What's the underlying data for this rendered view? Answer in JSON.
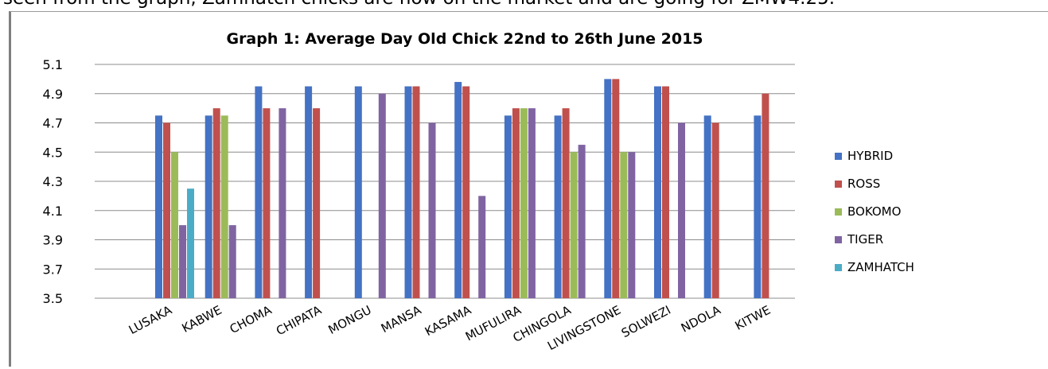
{
  "intro_text": "seen from the graph, Zamhatch chicks are now on the market and are going for ZMW4.25.",
  "chart_data": {
    "type": "bar",
    "title": "Graph 1: Average Day Old Chick 22nd to 26th June 2015",
    "xlabel": "",
    "ylabel": "",
    "ylim": [
      3.5,
      5.1
    ],
    "yticks": [
      "5.1",
      "4.9",
      "4.7",
      "4.5",
      "4.3",
      "4.1",
      "3.9",
      "3.7",
      "3.5"
    ],
    "grid": true,
    "legend_position": "right",
    "categories": [
      "LUSAKA",
      "KABWE",
      "CHOMA",
      "CHIPATA",
      "MONGU",
      "MANSA",
      "KASAMA",
      "MUFULIRA",
      "CHINGOLA",
      "LIVINGSTONE",
      "SOLWEZI",
      "NDOLA",
      "KITWE"
    ],
    "series": [
      {
        "name": "HYBRID",
        "color": "#4472c4",
        "values": [
          4.75,
          4.75,
          4.95,
          4.95,
          4.95,
          4.95,
          4.98,
          4.75,
          4.75,
          5.0,
          4.95,
          4.75,
          4.75
        ]
      },
      {
        "name": "ROSS",
        "color": "#c0504d",
        "values": [
          4.7,
          4.8,
          4.8,
          4.8,
          null,
          4.95,
          4.95,
          4.8,
          4.8,
          5.0,
          4.95,
          4.7,
          4.9
        ]
      },
      {
        "name": "BOKOMO",
        "color": "#9bbb59",
        "values": [
          4.5,
          4.75,
          null,
          null,
          null,
          null,
          null,
          4.8,
          4.5,
          4.5,
          null,
          null,
          null
        ]
      },
      {
        "name": "TIGER",
        "color": "#8064a2",
        "values": [
          4.0,
          4.0,
          4.8,
          null,
          4.9,
          4.7,
          4.2,
          4.8,
          4.55,
          4.5,
          4.7,
          null,
          null
        ]
      },
      {
        "name": "ZAMHATCH",
        "color": "#4bacc6",
        "values": [
          4.25,
          null,
          null,
          null,
          null,
          null,
          null,
          null,
          null,
          null,
          null,
          null,
          null
        ]
      }
    ]
  }
}
